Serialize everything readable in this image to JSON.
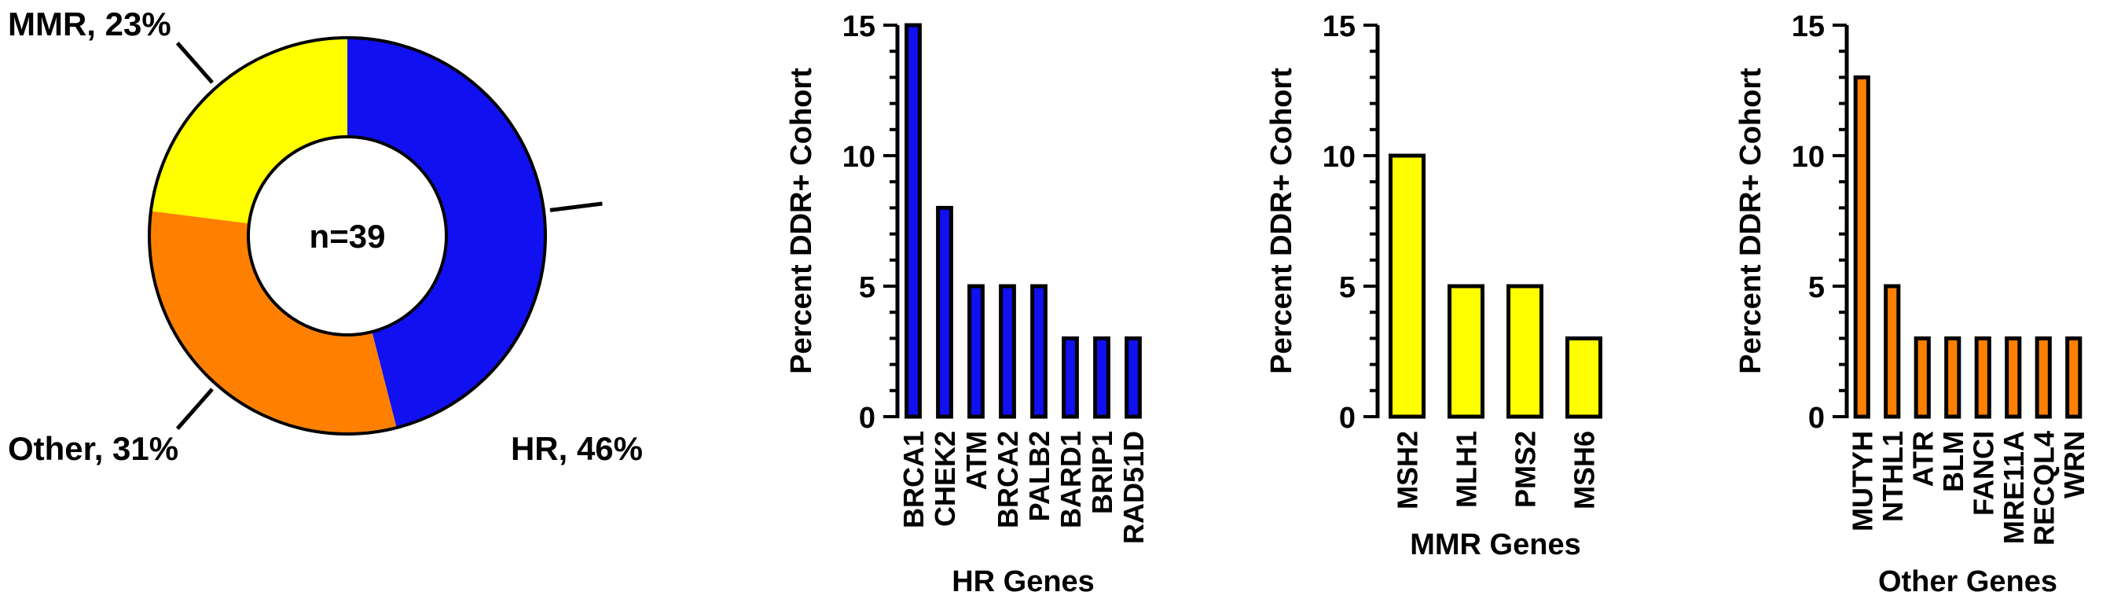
{
  "chart_data": [
    {
      "type": "pie",
      "center_label": "n=39",
      "slices": [
        {
          "name": "HR",
          "label": "HR, 46%",
          "value": 46,
          "color": "#1010f0"
        },
        {
          "name": "Other",
          "label": "Other, 31%",
          "value": 31,
          "color": "#ff8000"
        },
        {
          "name": "MMR",
          "label": "MMR, 23%",
          "value": 23,
          "color": "#ffff00"
        }
      ]
    },
    {
      "type": "bar",
      "categories": [
        "BRCA1",
        "CHEK2",
        "ATM",
        "BRCA2",
        "PALB2",
        "BARD1",
        "BRIP1",
        "RAD51D"
      ],
      "values": [
        15,
        8,
        5,
        5,
        5,
        3,
        3,
        3
      ],
      "xlabel": "HR Genes",
      "ylabel": "Percent DDR+ Cohort",
      "ylim": [
        0,
        15
      ],
      "yticks": [
        "0",
        "5",
        "10",
        "15"
      ],
      "color": "#1010f0"
    },
    {
      "type": "bar",
      "categories": [
        "MSH2",
        "MLH1",
        "PMS2",
        "MSH6"
      ],
      "values": [
        10,
        5,
        5,
        3
      ],
      "xlabel": "MMR Genes",
      "ylabel": "Percent DDR+ Cohort",
      "ylim": [
        0,
        15
      ],
      "yticks": [
        "0",
        "5",
        "10",
        "15"
      ],
      "color": "#ffff00"
    },
    {
      "type": "bar",
      "categories": [
        "MUTYH",
        "NTHL1",
        "ATR",
        "BLM",
        "FANCI",
        "MRE11A",
        "RECQL4",
        "WRN"
      ],
      "values": [
        13,
        5,
        3,
        3,
        3,
        3,
        3,
        3
      ],
      "xlabel": "Other Genes",
      "ylabel": "Percent DDR+ Cohort",
      "ylim": [
        0,
        15
      ],
      "yticks": [
        "0",
        "5",
        "10",
        "15"
      ],
      "color": "#ff8000"
    }
  ]
}
